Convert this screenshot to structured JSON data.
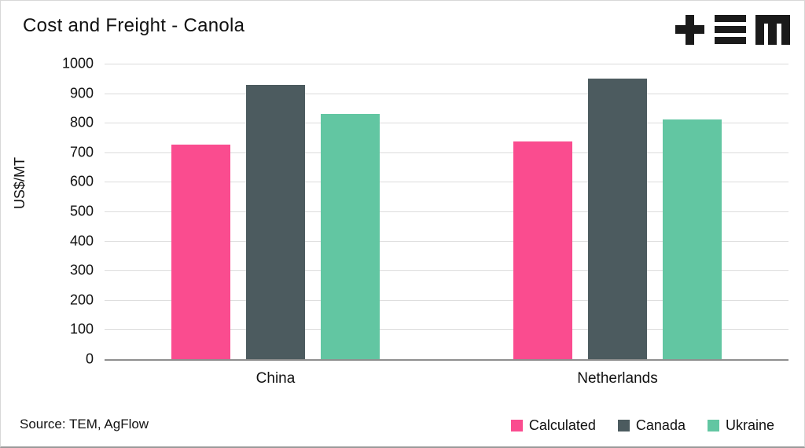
{
  "title": "Cost and Freight - Canola",
  "logo": {
    "name": "TEM logo",
    "color": "#1a1a1a"
  },
  "source": "Source: TEM, AgFlow",
  "chart_data": {
    "type": "bar",
    "title": "Cost and Freight - Canola",
    "ylabel": "US$/MT",
    "xlabel": "",
    "ylim": [
      0,
      1000
    ],
    "ytick_step": 100,
    "grid": true,
    "legend_position": "bottom-right",
    "categories": [
      "China",
      "Netherlands"
    ],
    "series": [
      {
        "name": "Calculated",
        "color": "#fa4c8f",
        "values": [
          725,
          737
        ]
      },
      {
        "name": "Canada",
        "color": "#4c5b5f",
        "values": [
          928,
          950
        ]
      },
      {
        "name": "Ukraine",
        "color": "#62c6a2",
        "values": [
          830,
          810
        ]
      }
    ]
  }
}
